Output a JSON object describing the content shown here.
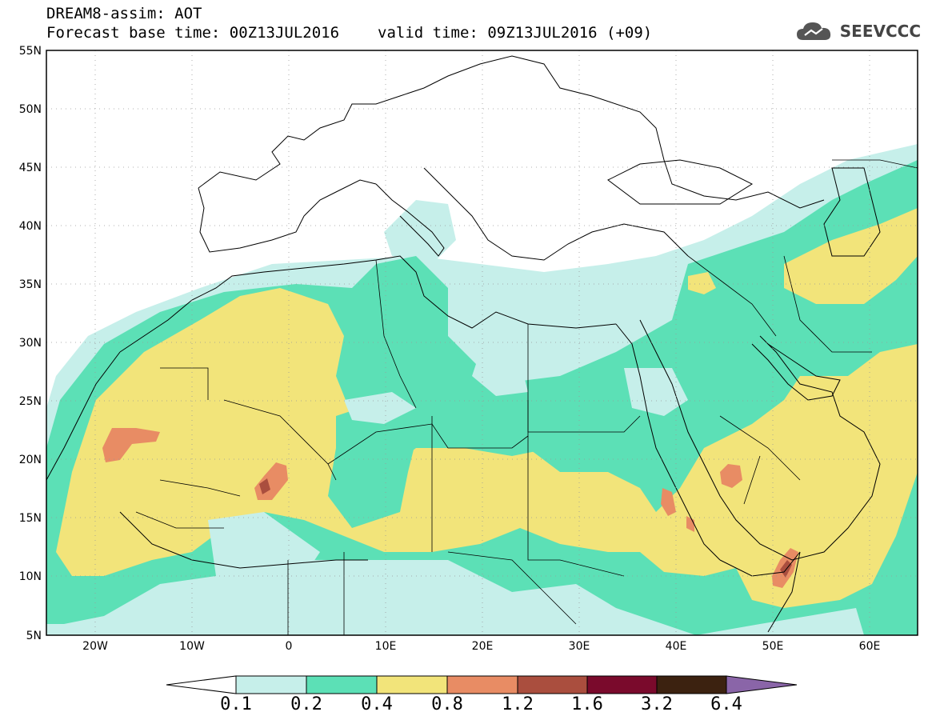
{
  "header": {
    "line1": "DREAM8-assim: AOT",
    "base_label": "Forecast base time: 00Z13JUL2016",
    "valid_label": "valid time: 09Z13JUL2016 (+09)"
  },
  "logo": {
    "text": "SEEVCCC",
    "icon": "cloud-icon"
  },
  "map": {
    "lat_labels": [
      "55N",
      "50N",
      "45N",
      "40N",
      "35N",
      "30N",
      "25N",
      "20N",
      "15N",
      "10N",
      "5N"
    ],
    "lon_labels": [
      "20W",
      "10W",
      "0",
      "10E",
      "20E",
      "30E",
      "40E",
      "50E",
      "60E"
    ],
    "extent": {
      "lon": [
        -25,
        65
      ],
      "lat": [
        5,
        55
      ]
    }
  },
  "colorbar": {
    "levels": [
      "0.1",
      "0.2",
      "0.4",
      "0.8",
      "1.2",
      "1.6",
      "3.2",
      "6.4"
    ],
    "colors": [
      "#c6efea",
      "#5ce0b6",
      "#f2e47a",
      "#e88c64",
      "#aa4e3e",
      "#7a0a2c",
      "#3c2210"
    ],
    "below_color": "#ffffff",
    "above_color": "#8a65a8"
  }
}
